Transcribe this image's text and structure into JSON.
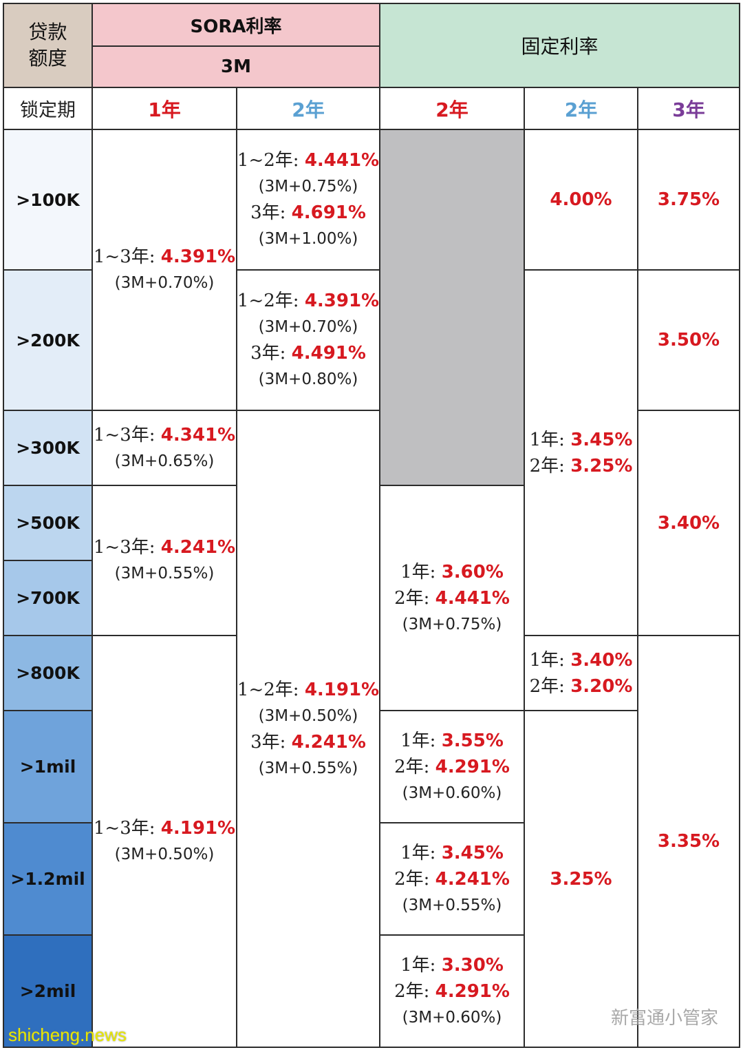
{
  "header": {
    "loan_amount_label": "贷款\n额度",
    "lock_period_label": "锁定期",
    "sora_title": "SORA利率",
    "sora_tenor": "3M",
    "fixed_title": "固定利率"
  },
  "lock_periods": [
    {
      "label": "1年",
      "color": "#d71920"
    },
    {
      "label": "2年",
      "color": "#5aa0d2"
    },
    {
      "label": "2年",
      "color": "#d71920"
    },
    {
      "label": "2年",
      "color": "#5aa0d2"
    },
    {
      "label": "3年",
      "color": "#7a3c98"
    }
  ],
  "amounts": [
    ">100K",
    ">200K",
    ">300K",
    ">500K",
    ">700K",
    ">800K",
    ">1mil",
    ">1.2mil",
    ">2mil"
  ],
  "amount_colors": [
    "#f3f7fc",
    "#e3edf8",
    "#d2e3f4",
    "#bcd6ef",
    "#a6c8ea",
    "#8db8e3",
    "#6fa3db",
    "#4f8bd0",
    "#2f6fbe"
  ],
  "sora_1y": [
    {
      "lines": [
        {
          "k": "1~3年: ",
          "v": "4.391%"
        }
      ],
      "sub": [
        "(3M+0.70%)"
      ]
    },
    {
      "lines": [
        {
          "k": "1~3年: ",
          "v": "4.341%"
        }
      ],
      "sub": [
        "(3M+0.65%)"
      ]
    },
    {
      "lines": [
        {
          "k": "1~3年: ",
          "v": "4.241%"
        }
      ],
      "sub": [
        "(3M+0.55%)"
      ]
    },
    {
      "lines": [
        {
          "k": "1~3年: ",
          "v": "4.191%"
        }
      ],
      "sub": [
        "(3M+0.50%)"
      ]
    }
  ],
  "sora_2y": [
    {
      "a": {
        "k": "1~2年: ",
        "v": "4.441%"
      },
      "as": "(3M+0.75%)",
      "b": {
        "k": "3年: ",
        "v": "4.691%"
      },
      "bs": "(3M+1.00%)"
    },
    {
      "a": {
        "k": "1~2年: ",
        "v": "4.391%"
      },
      "as": "(3M+0.70%)",
      "b": {
        "k": "3年: ",
        "v": "4.491%"
      },
      "bs": "(3M+0.80%)"
    },
    {
      "a": {
        "k": "1~2年: ",
        "v": "4.191%"
      },
      "as": "(3M+0.50%)",
      "b": {
        "k": "3年: ",
        "v": "4.241%"
      },
      "bs": "(3M+0.55%)"
    }
  ],
  "fixed_2y_red": [
    {
      "a": {
        "k": "1年: ",
        "v": "3.60%"
      },
      "b": {
        "k": "2年: ",
        "v": "4.441%"
      },
      "s": "(3M+0.75%)"
    },
    {
      "a": {
        "k": "1年: ",
        "v": "3.55%"
      },
      "b": {
        "k": "2年: ",
        "v": "4.291%"
      },
      "s": "(3M+0.60%)"
    },
    {
      "a": {
        "k": "1年: ",
        "v": "3.45%"
      },
      "b": {
        "k": "2年: ",
        "v": "4.241%"
      },
      "s": "(3M+0.55%)"
    },
    {
      "a": {
        "k": "1年: ",
        "v": "3.30%"
      },
      "b": {
        "k": "2年: ",
        "v": "4.291%"
      },
      "s": "(3M+0.60%)"
    }
  ],
  "fixed_2y_blue": {
    "r1": "4.00%",
    "r2": {
      "a": {
        "k": "1年: ",
        "v": "3.45%"
      },
      "b": {
        "k": "2年: ",
        "v": "3.25%"
      }
    },
    "r3": {
      "a": {
        "k": "1年: ",
        "v": "3.40%"
      },
      "b": {
        "k": "2年: ",
        "v": "3.20%"
      }
    },
    "r4": "3.25%"
  },
  "fixed_3y": [
    "3.75%",
    "3.50%",
    "3.40%",
    "3.35%"
  ],
  "watermark": {
    "left": "shicheng.news",
    "right": "新富通小管家"
  }
}
